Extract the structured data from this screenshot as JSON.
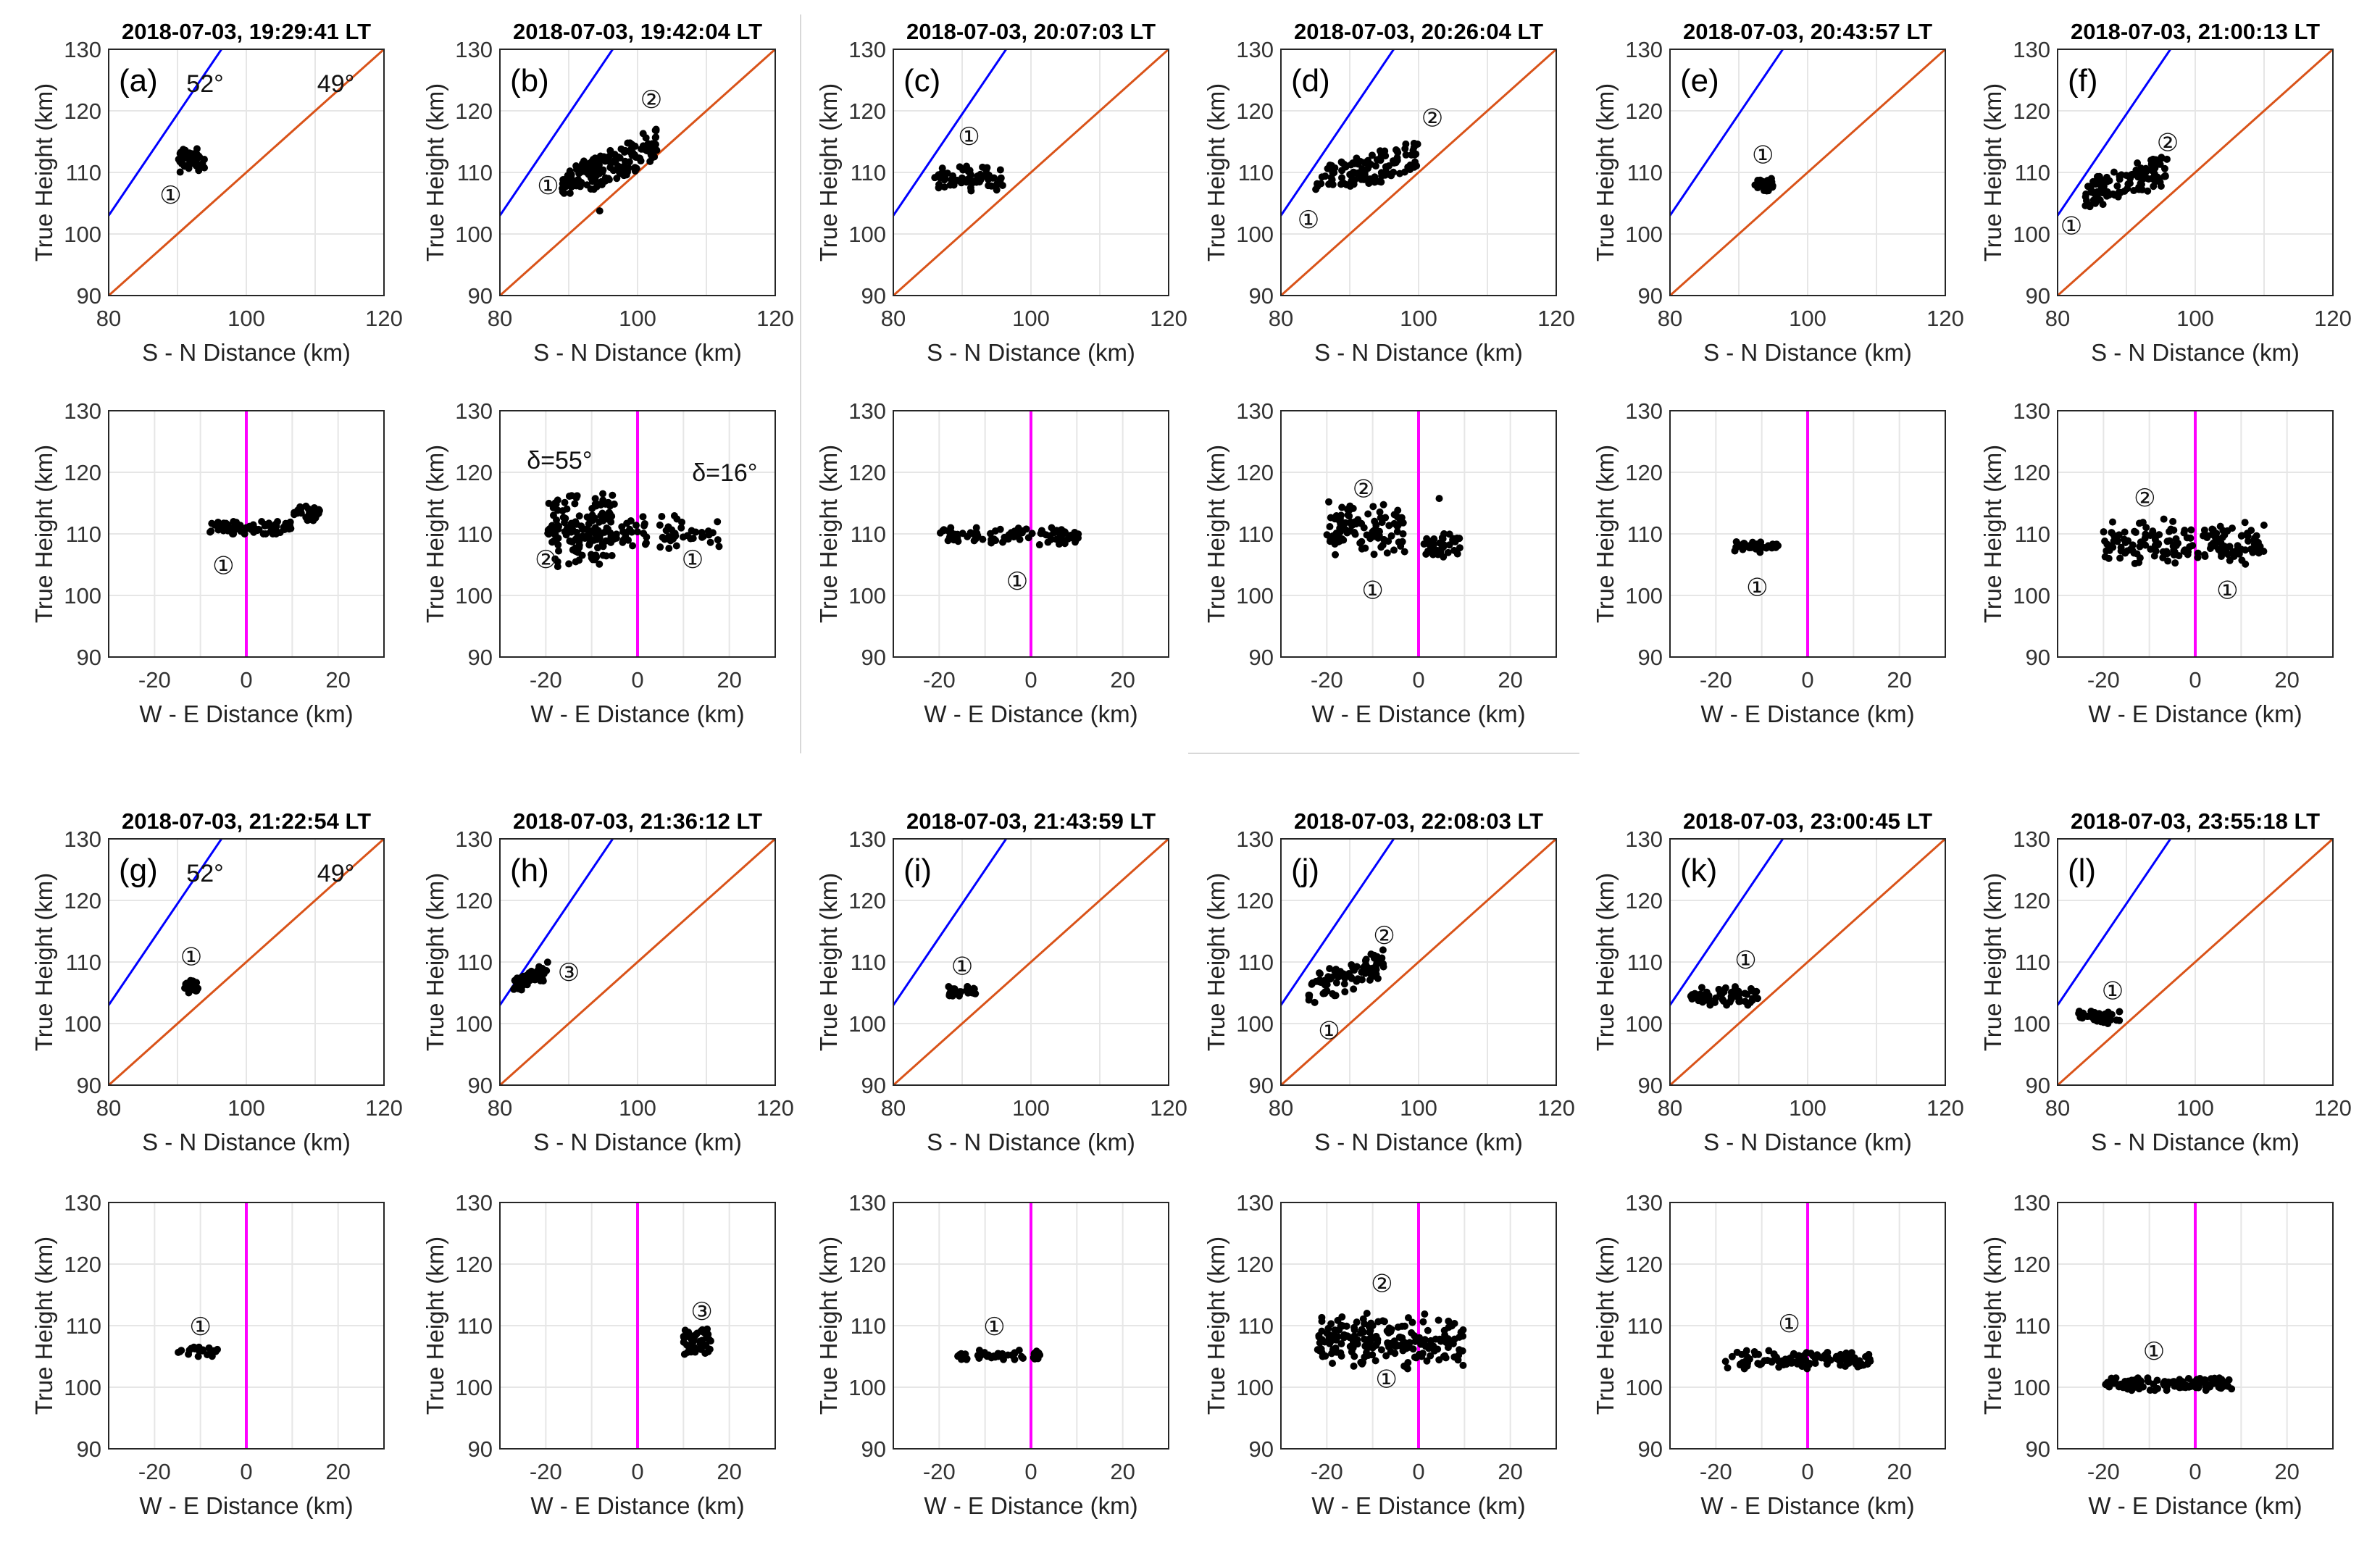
{
  "chart_data": [
    {
      "id": "a",
      "type": "scatter",
      "label": "(a)",
      "title": "2018-07-03,   19:29:41  LT",
      "sn": {
        "clusters": [
          {
            "x": [
              90,
              94
            ],
            "y": [
              110,
              114
            ],
            "n": 55
          }
        ],
        "markers": [
          {
            "text": "①",
            "x": 89,
            "y": 106.5
          }
        ],
        "angles": [
          {
            "text": "52°",
            "x": 94,
            "y": 124.5
          },
          {
            "text": "49°",
            "x": 113,
            "y": 124.5
          }
        ]
      },
      "we": {
        "clusters": [
          {
            "x": [
              -8,
              10
            ],
            "y": [
              110,
              112
            ],
            "n": 70
          },
          {
            "x": [
              10,
              16
            ],
            "y": [
              112,
              114.5
            ],
            "n": 30
          }
        ],
        "markers": [
          {
            "text": "①",
            "x": -5,
            "y": 105
          }
        ],
        "annotations": []
      }
    },
    {
      "id": "b",
      "type": "scatter",
      "label": "(b)",
      "title": "2018-07-03,   19:42:04  LT",
      "sn": {
        "clusters": [
          {
            "x": [
              89,
              94
            ],
            "y": [
              106,
              113
            ],
            "n": 60
          },
          {
            "x": [
              93,
              103
            ],
            "y": [
              107,
              117
            ],
            "n": 120
          },
          {
            "x": [
              94,
              95
            ],
            "y": [
              103.5,
              104
            ],
            "n": 1
          }
        ],
        "markers": [
          {
            "text": "①",
            "x": 87,
            "y": 108
          },
          {
            "text": "②",
            "x": 102,
            "y": 122
          }
        ],
        "angles": []
      },
      "we": {
        "clusters": [
          {
            "x": [
              -20,
              -5
            ],
            "y": [
              104,
              118
            ],
            "n": 150
          },
          {
            "x": [
              -5,
              18
            ],
            "y": [
              107,
              113
            ],
            "n": 60
          }
        ],
        "markers": [
          {
            "text": "②",
            "x": -20,
            "y": 106
          },
          {
            "text": "①",
            "x": 12,
            "y": 106
          }
        ],
        "annotations": [
          {
            "text": "δ=55°",
            "x": -17,
            "y": 122
          },
          {
            "text": "δ=16°",
            "x": 19,
            "y": 120
          }
        ]
      }
    },
    {
      "id": "c",
      "type": "scatter",
      "label": "(c)",
      "title": "2018-07-03,   20:07:03  LT",
      "sn": {
        "clusters": [
          {
            "x": [
              86,
              96
            ],
            "y": [
              107,
              111
            ],
            "n": 70
          }
        ],
        "markers": [
          {
            "text": "①",
            "x": 91,
            "y": 116
          }
        ],
        "angles": []
      },
      "we": {
        "clusters": [
          {
            "x": [
              -20,
              11
            ],
            "y": [
              108,
              111
            ],
            "n": 90
          }
        ],
        "markers": [
          {
            "text": "①",
            "x": -3,
            "y": 102.5
          }
        ],
        "annotations": []
      }
    },
    {
      "id": "d",
      "type": "scatter",
      "label": "(d)",
      "title": "2018-07-03,   20:26:04  LT",
      "sn": {
        "clusters": [
          {
            "x": [
              85,
              100
            ],
            "y": [
              106,
              115
            ],
            "n": 110
          }
        ],
        "markers": [
          {
            "text": "①",
            "x": 84,
            "y": 102.5
          },
          {
            "text": "②",
            "x": 102,
            "y": 119
          }
        ],
        "angles": []
      },
      "we": {
        "clusters": [
          {
            "x": [
              -20,
              -3
            ],
            "y": [
              106,
              116
            ],
            "n": 100
          },
          {
            "x": [
              1,
              9
            ],
            "y": [
              106,
              110
            ],
            "n": 40
          },
          {
            "x": [
              4,
              5
            ],
            "y": [
              115.5,
              116
            ],
            "n": 1
          }
        ],
        "markers": [
          {
            "text": "②",
            "x": -12,
            "y": 117.5
          },
          {
            "text": "①",
            "x": -10,
            "y": 101
          }
        ],
        "annotations": []
      }
    },
    {
      "id": "e",
      "type": "scatter",
      "label": "(e)",
      "title": "2018-07-03,   20:43:57  LT",
      "sn": {
        "clusters": [
          {
            "x": [
              92,
              95
            ],
            "y": [
              107,
              109
            ],
            "n": 25
          }
        ],
        "markers": [
          {
            "text": "①",
            "x": 93.5,
            "y": 113
          }
        ],
        "angles": []
      },
      "we": {
        "clusters": [
          {
            "x": [
              -16,
              -6
            ],
            "y": [
              107,
              109
            ],
            "n": 35
          }
        ],
        "markers": [
          {
            "text": "①",
            "x": -11,
            "y": 101.5
          }
        ],
        "angles": [],
        "annotations": []
      }
    },
    {
      "id": "f",
      "type": "scatter",
      "label": "(f)",
      "title": "2018-07-03,   21:00:13  LT",
      "sn": {
        "clusters": [
          {
            "x": [
              84,
              96
            ],
            "y": [
              104,
              113
            ],
            "n": 110
          }
        ],
        "markers": [
          {
            "text": "①",
            "x": 82,
            "y": 101.5
          },
          {
            "text": "②",
            "x": 96,
            "y": 115
          }
        ],
        "angles": []
      },
      "we": {
        "clusters": [
          {
            "x": [
              -20,
              15
            ],
            "y": [
              104,
              113
            ],
            "n": 160
          }
        ],
        "markers": [
          {
            "text": "②",
            "x": -11,
            "y": 116
          },
          {
            "text": "①",
            "x": 7,
            "y": 101
          }
        ],
        "annotations": []
      }
    },
    {
      "id": "g",
      "type": "scatter",
      "label": "(g)",
      "title": "2018-07-03,   21:22:54  LT",
      "sn": {
        "clusters": [
          {
            "x": [
              91,
              93
            ],
            "y": [
              105,
              107
            ],
            "n": 20
          }
        ],
        "markers": [
          {
            "text": "①",
            "x": 92,
            "y": 111
          }
        ],
        "angles": [
          {
            "text": "52°",
            "x": 94,
            "y": 124.5
          },
          {
            "text": "49°",
            "x": 113,
            "y": 124.5
          }
        ]
      },
      "we": {
        "clusters": [
          {
            "x": [
              -15,
              -6
            ],
            "y": [
              105,
              106.5
            ],
            "n": 25
          }
        ],
        "markers": [
          {
            "text": "①",
            "x": -10,
            "y": 110
          }
        ],
        "annotations": []
      }
    },
    {
      "id": "h",
      "type": "scatter",
      "label": "(h)",
      "title": "2018-07-03,   21:36:12  LT",
      "sn": {
        "clusters": [
          {
            "x": [
              82,
              87
            ],
            "y": [
              105,
              110
            ],
            "n": 50
          }
        ],
        "markers": [
          {
            "text": "③",
            "x": 90,
            "y": 108.5
          }
        ],
        "angles": []
      },
      "we": {
        "clusters": [
          {
            "x": [
              10,
              16
            ],
            "y": [
              105,
              110
            ],
            "n": 50
          }
        ],
        "markers": [
          {
            "text": "③",
            "x": 14,
            "y": 112.5
          }
        ],
        "annotations": []
      }
    },
    {
      "id": "i",
      "type": "scatter",
      "label": "(i)",
      "title": "2018-07-03,   21:43:59  LT",
      "sn": {
        "clusters": [
          {
            "x": [
              88,
              92
            ],
            "y": [
              104.5,
              106
            ],
            "n": 25
          }
        ],
        "markers": [
          {
            "text": "①",
            "x": 90,
            "y": 109.5
          }
        ],
        "angles": []
      },
      "we": {
        "clusters": [
          {
            "x": [
              -16,
              2
            ],
            "y": [
              104.5,
              106
            ],
            "n": 50
          }
        ],
        "markers": [
          {
            "text": "①",
            "x": -8,
            "y": 110
          }
        ],
        "annotations": []
      }
    },
    {
      "id": "j",
      "type": "scatter",
      "label": "(j)",
      "title": "2018-07-03,   22:08:03  LT",
      "sn": {
        "clusters": [
          {
            "x": [
              84,
              95
            ],
            "y": [
              103,
              112
            ],
            "n": 90
          }
        ],
        "markers": [
          {
            "text": "①",
            "x": 87,
            "y": 99
          },
          {
            "text": "②",
            "x": 95,
            "y": 114.5
          }
        ],
        "angles": []
      },
      "we": {
        "clusters": [
          {
            "x": [
              -22,
              10
            ],
            "y": [
              103,
              112
            ],
            "n": 200
          }
        ],
        "markers": [
          {
            "text": "②",
            "x": -8,
            "y": 117
          },
          {
            "text": "①",
            "x": -7,
            "y": 101.5
          }
        ],
        "annotations": []
      }
    },
    {
      "id": "k",
      "type": "scatter",
      "label": "(k)",
      "title": "2018-07-03,   23:00:45  LT",
      "sn": {
        "clusters": [
          {
            "x": [
              83,
              93
            ],
            "y": [
              103,
              106
            ],
            "n": 60
          }
        ],
        "markers": [
          {
            "text": "①",
            "x": 91,
            "y": 110.5
          }
        ],
        "angles": []
      },
      "we": {
        "clusters": [
          {
            "x": [
              -18,
              14
            ],
            "y": [
              103,
              106
            ],
            "n": 110
          }
        ],
        "markers": [
          {
            "text": "①",
            "x": -4,
            "y": 110.5
          }
        ],
        "annotations": []
      }
    },
    {
      "id": "l",
      "type": "scatter",
      "label": "(l)",
      "title": "2018-07-03,   23:55:18  LT",
      "sn": {
        "clusters": [
          {
            "x": [
              83,
              89
            ],
            "y": [
              100,
              102
            ],
            "n": 45
          }
        ],
        "markers": [
          {
            "text": "①",
            "x": 88,
            "y": 105.5
          }
        ],
        "angles": []
      },
      "we": {
        "clusters": [
          {
            "x": [
              -20,
              8
            ],
            "y": [
              99.5,
              101.5
            ],
            "n": 110
          }
        ],
        "markers": [
          {
            "text": "①",
            "x": -9,
            "y": 106
          }
        ],
        "annotations": []
      }
    }
  ],
  "axes": {
    "sn": {
      "xlabel": "S - N  Distance (km)",
      "ylabel": "True Height (km)",
      "xlim": [
        80,
        120
      ],
      "ylim": [
        90,
        130
      ],
      "xticks": [
        "80",
        "100",
        "120"
      ],
      "yticks": [
        "90",
        "100",
        "110",
        "120",
        "130"
      ]
    },
    "we": {
      "xlabel": "W - E  Distance (km)",
      "ylabel": "True Height (km)",
      "xlim": [
        -30,
        30
      ],
      "ylim": [
        90,
        130
      ],
      "xticks": [
        "-20",
        "0",
        "20"
      ],
      "yticks": [
        "90",
        "100",
        "110",
        "120",
        "130"
      ]
    }
  },
  "colors": {
    "line52": "#0000ff",
    "line49": "#d95319",
    "zero_line": "#ff00ff",
    "points": "#000000"
  }
}
